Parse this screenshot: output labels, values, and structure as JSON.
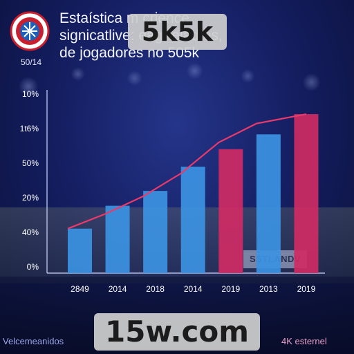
{
  "header": {
    "title_lines": [
      "Estaística m crience",
      "signicatlive: eagr eladtes,",
      "de jogadores no 505k"
    ],
    "corner_label": "50/14"
  },
  "watermarks": {
    "top": "5k5k",
    "bottom": "15w.com"
  },
  "footer": {
    "left": "Velcemeanidos",
    "right": "4K esternel"
  },
  "stand_sign": "SSTLANDV",
  "colors": {
    "bar_blue": "#3c92e2",
    "bar_pink": "#cf2b64",
    "trend_line": "#ea3a6b"
  },
  "chart_data": {
    "type": "bar",
    "y_tick_labels": [
      "10%",
      "1t6%",
      "50%",
      "20%",
      "40%",
      "0%"
    ],
    "categories": [
      "2849",
      "2014",
      "2018",
      "2014",
      "2019",
      "2013",
      "2019"
    ],
    "values": [
      1.65,
      2.5,
      3.05,
      3.95,
      4.6,
      5.15,
      5.9
    ],
    "bar_colors": [
      "blue",
      "blue",
      "blue",
      "blue",
      "pink",
      "blue",
      "pink"
    ],
    "trend": [
      1.65,
      2.2,
      2.85,
      3.7,
      4.85,
      5.55,
      5.9
    ],
    "ylim": [
      0,
      6.8
    ],
    "grid": false,
    "title": "",
    "xlabel": "",
    "ylabel": ""
  }
}
